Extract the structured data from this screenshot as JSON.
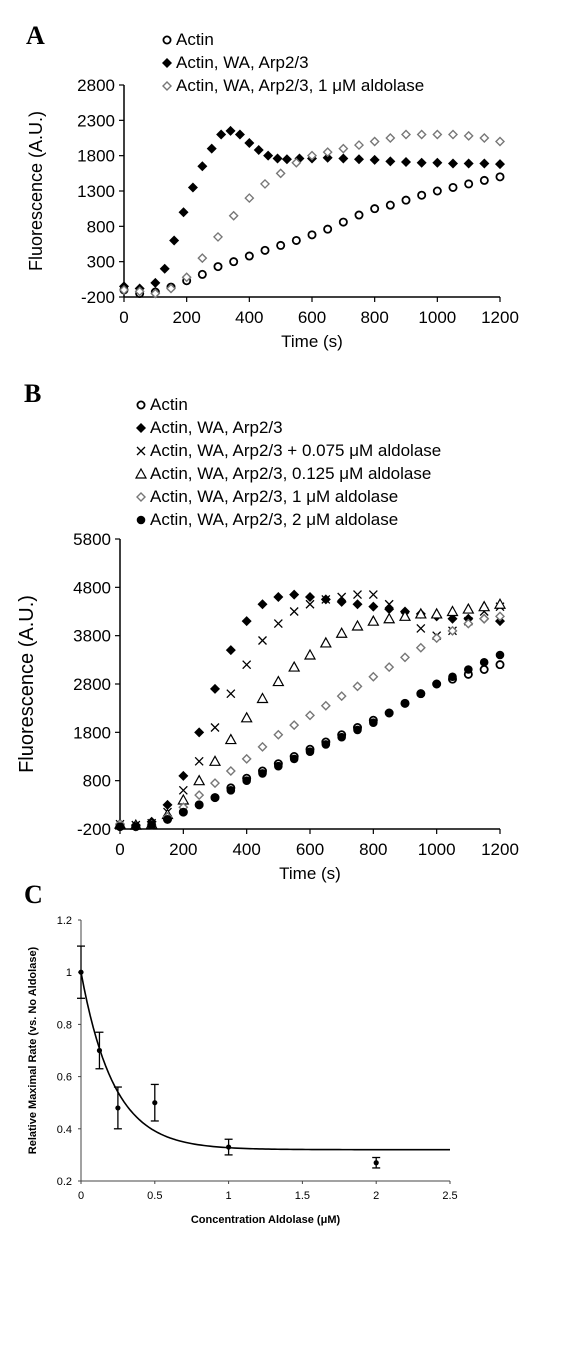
{
  "chart_data": [
    {
      "panel": "A",
      "type": "scatter",
      "xlabel": "Time (s)",
      "ylabel": "Fluorescence (A.U.)",
      "xlim": [
        0,
        1200
      ],
      "ylim": [
        -200,
        2800
      ],
      "xticks": [
        0,
        200,
        400,
        600,
        800,
        1000,
        1200
      ],
      "yticks": [
        -200,
        300,
        800,
        1300,
        1800,
        2300,
        2800
      ],
      "legend_position": "top",
      "series": [
        {
          "name": "Actin",
          "marker": "open-circle",
          "x": [
            0,
            50,
            100,
            150,
            200,
            250,
            300,
            350,
            400,
            450,
            500,
            550,
            600,
            650,
            700,
            750,
            800,
            850,
            900,
            950,
            1000,
            1050,
            1100,
            1150,
            1200
          ],
          "y": [
            -100,
            -150,
            -130,
            -60,
            30,
            120,
            230,
            300,
            380,
            460,
            530,
            600,
            680,
            760,
            860,
            960,
            1050,
            1100,
            1170,
            1240,
            1300,
            1350,
            1400,
            1450,
            1500
          ]
        },
        {
          "name": "Actin, WA, Arp2/3",
          "marker": "filled-diamond",
          "x": [
            0,
            50,
            100,
            130,
            160,
            190,
            220,
            250,
            280,
            310,
            340,
            370,
            400,
            430,
            460,
            490,
            520,
            560,
            600,
            650,
            700,
            750,
            800,
            850,
            900,
            950,
            1000,
            1050,
            1100,
            1150,
            1200
          ],
          "y": [
            -50,
            -80,
            0,
            200,
            600,
            1000,
            1350,
            1650,
            1900,
            2100,
            2150,
            2100,
            1980,
            1880,
            1800,
            1760,
            1750,
            1760,
            1760,
            1770,
            1760,
            1750,
            1740,
            1720,
            1710,
            1700,
            1700,
            1690,
            1690,
            1690,
            1680
          ]
        },
        {
          "name": "Actin, WA, Arp2/3, 1 μM aldolase",
          "marker": "open-diamond",
          "x": [
            0,
            50,
            100,
            150,
            200,
            250,
            300,
            350,
            400,
            450,
            500,
            550,
            600,
            650,
            700,
            750,
            800,
            850,
            900,
            950,
            1000,
            1050,
            1100,
            1150,
            1200
          ],
          "y": [
            -100,
            -120,
            -150,
            -80,
            80,
            350,
            650,
            950,
            1200,
            1400,
            1550,
            1700,
            1800,
            1850,
            1900,
            1950,
            2000,
            2050,
            2100,
            2100,
            2100,
            2100,
            2080,
            2050,
            2000
          ]
        }
      ]
    },
    {
      "panel": "B",
      "type": "scatter",
      "xlabel": "Time (s)",
      "ylabel": "Fluorescence (A.U.)",
      "xlim": [
        0,
        1200
      ],
      "ylim": [
        -200,
        5800
      ],
      "xticks": [
        0,
        200,
        400,
        600,
        800,
        1000,
        1200
      ],
      "yticks": [
        -200,
        800,
        1800,
        2800,
        3800,
        4800,
        5800
      ],
      "legend_position": "top",
      "series": [
        {
          "name": "Actin",
          "marker": "open-circle",
          "x": [
            0,
            50,
            100,
            150,
            200,
            250,
            300,
            350,
            400,
            450,
            500,
            550,
            600,
            650,
            700,
            750,
            800,
            850,
            900,
            950,
            1000,
            1050,
            1100,
            1150,
            1200
          ],
          "y": [
            -150,
            -150,
            -120,
            0,
            150,
            300,
            450,
            650,
            850,
            1000,
            1150,
            1300,
            1450,
            1600,
            1750,
            1900,
            2050,
            2200,
            2400,
            2600,
            2800,
            2900,
            3000,
            3100,
            3200
          ]
        },
        {
          "name": "Actin, WA, Arp2/3",
          "marker": "filled-diamond",
          "x": [
            0,
            50,
            100,
            150,
            200,
            250,
            300,
            350,
            400,
            450,
            500,
            550,
            600,
            650,
            700,
            750,
            800,
            850,
            900,
            950,
            1000,
            1050,
            1100,
            1150,
            1200
          ],
          "y": [
            -100,
            -120,
            -50,
            300,
            900,
            1800,
            2700,
            3500,
            4100,
            4450,
            4600,
            4650,
            4600,
            4550,
            4500,
            4450,
            4400,
            4350,
            4300,
            4250,
            4200,
            4150,
            4150,
            4150,
            4100
          ]
        },
        {
          "name": "Actin, WA, Arp2/3 + 0.075 μM aldolase",
          "marker": "cross",
          "x": [
            0,
            50,
            100,
            150,
            200,
            250,
            300,
            350,
            400,
            450,
            500,
            550,
            600,
            650,
            700,
            750,
            800,
            850,
            900,
            950,
            1000,
            1050,
            1100,
            1150,
            1200
          ],
          "y": [
            -100,
            -120,
            -80,
            150,
            600,
            1200,
            1900,
            2600,
            3200,
            3700,
            4050,
            4300,
            4450,
            4550,
            4600,
            4650,
            4650,
            4450,
            4200,
            3950,
            3800,
            3900,
            4100,
            4300,
            4400
          ]
        },
        {
          "name": "Actin, WA, Arp2/3, 0.125 μM aldolase",
          "marker": "open-triangle",
          "x": [
            0,
            50,
            100,
            150,
            200,
            250,
            300,
            350,
            400,
            450,
            500,
            550,
            600,
            650,
            700,
            750,
            800,
            850,
            900,
            950,
            1000,
            1050,
            1100,
            1150,
            1200
          ],
          "y": [
            -100,
            -120,
            -100,
            100,
            400,
            800,
            1200,
            1650,
            2100,
            2500,
            2850,
            3150,
            3400,
            3650,
            3850,
            4000,
            4100,
            4150,
            4200,
            4250,
            4250,
            4300,
            4350,
            4400,
            4450
          ]
        },
        {
          "name": "Actin, WA, Arp2/3, 1 μM aldolase",
          "marker": "open-diamond",
          "x": [
            0,
            50,
            100,
            150,
            200,
            250,
            300,
            350,
            400,
            450,
            500,
            550,
            600,
            650,
            700,
            750,
            800,
            850,
            900,
            950,
            1000,
            1050,
            1100,
            1150,
            1200
          ],
          "y": [
            -100,
            -150,
            -120,
            50,
            250,
            500,
            750,
            1000,
            1250,
            1500,
            1750,
            1950,
            2150,
            2350,
            2550,
            2750,
            2950,
            3150,
            3350,
            3550,
            3750,
            3900,
            4050,
            4150,
            4200
          ]
        },
        {
          "name": "Actin, WA, Arp2/3, 2 μM aldolase",
          "marker": "filled-circle",
          "x": [
            0,
            50,
            100,
            150,
            200,
            250,
            300,
            350,
            400,
            450,
            500,
            550,
            600,
            650,
            700,
            750,
            800,
            850,
            900,
            950,
            1000,
            1050,
            1100,
            1150,
            1200
          ],
          "y": [
            -150,
            -150,
            -120,
            0,
            150,
            300,
            450,
            600,
            800,
            950,
            1100,
            1250,
            1400,
            1550,
            1700,
            1850,
            2000,
            2200,
            2400,
            2600,
            2800,
            2950,
            3100,
            3250,
            3400
          ]
        }
      ]
    },
    {
      "panel": "C",
      "type": "scatter",
      "xlabel": "Concentration Aldolase (μM)",
      "ylabel": "Relative Maximal Rate (vs. No Aldolase)",
      "xlim": [
        0,
        2.5
      ],
      "ylim": [
        0.2,
        1.2
      ],
      "xticks": [
        0,
        0.5,
        1,
        1.5,
        2,
        2.5
      ],
      "xtick_labels": [
        "0",
        "0.5",
        "1",
        "1.5",
        "2",
        "2.5"
      ],
      "yticks": [
        0.2,
        0.4,
        0.6,
        0.8,
        1.0,
        1.2
      ],
      "ytick_labels": [
        "0.2",
        "0.4",
        "0.6",
        "0.8",
        "1",
        "1.2"
      ],
      "points": {
        "x": [
          0,
          0.125,
          0.25,
          0.5,
          1,
          2
        ],
        "y": [
          1.0,
          0.7,
          0.48,
          0.5,
          0.33,
          0.27
        ],
        "error": [
          0.1,
          0.07,
          0.08,
          0.07,
          0.03,
          0.02
        ]
      },
      "fit_curve": {
        "type": "exponential-decay",
        "plateau": 0.32,
        "start": 1.0,
        "rate": 4.5
      }
    }
  ],
  "panel_letters": {
    "a": "A",
    "b": "B",
    "c": "C"
  },
  "colors": {
    "ink": "#000000",
    "background": "#ffffff"
  }
}
